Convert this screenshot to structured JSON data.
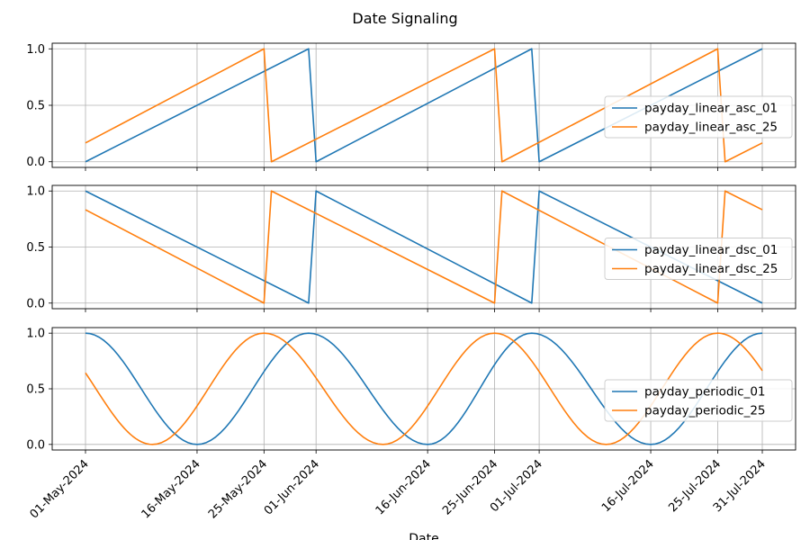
{
  "figure": {
    "title": "Date Signaling",
    "xlabel": "Date"
  },
  "colors": {
    "series_a": "#1f77b4",
    "series_b": "#ff7f0e",
    "grid": "#b0b0b0"
  },
  "chart_data": {
    "type": "line",
    "title": "Date Signaling",
    "xlabel": "Date",
    "x_range": [
      "2024-05-01",
      "2024-07-31"
    ],
    "xticks": [
      {
        "date": "2024-05-01",
        "label": "01-May-2024"
      },
      {
        "date": "2024-05-16",
        "label": "16-May-2024"
      },
      {
        "date": "2024-05-25",
        "label": "25-May-2024"
      },
      {
        "date": "2024-06-01",
        "label": "01-Jun-2024"
      },
      {
        "date": "2024-06-16",
        "label": "16-Jun-2024"
      },
      {
        "date": "2024-06-25",
        "label": "25-Jun-2024"
      },
      {
        "date": "2024-07-01",
        "label": "01-Jul-2024"
      },
      {
        "date": "2024-07-16",
        "label": "16-Jul-2024"
      },
      {
        "date": "2024-07-25",
        "label": "25-Jul-2024"
      },
      {
        "date": "2024-07-31",
        "label": "31-Jul-2024"
      }
    ],
    "grid": true,
    "panels": [
      {
        "ylim": [
          -0.05,
          1.05
        ],
        "yticks": [
          {
            "value": 0.0,
            "label": "0.0"
          },
          {
            "value": 0.5,
            "label": "0.5"
          },
          {
            "value": 1.0,
            "label": "1.0"
          }
        ],
        "legend_position": "right",
        "series": [
          {
            "name": "payday_linear_asc_01",
            "color": "#1f77b4",
            "points": [
              {
                "date": "2024-05-01",
                "y": 0.0
              },
              {
                "date": "2024-05-31",
                "y": 1.0
              },
              {
                "date": "2024-06-01",
                "y": 0.0
              },
              {
                "date": "2024-06-30",
                "y": 1.0
              },
              {
                "date": "2024-07-01",
                "y": 0.0
              },
              {
                "date": "2024-07-31",
                "y": 1.0
              }
            ]
          },
          {
            "name": "payday_linear_asc_25",
            "color": "#ff7f0e",
            "points": [
              {
                "date": "2024-05-01",
                "y": 0.167
              },
              {
                "date": "2024-05-25",
                "y": 1.0
              },
              {
                "date": "2024-05-26",
                "y": 0.0
              },
              {
                "date": "2024-06-25",
                "y": 1.0
              },
              {
                "date": "2024-06-26",
                "y": 0.0
              },
              {
                "date": "2024-07-25",
                "y": 1.0
              },
              {
                "date": "2024-07-26",
                "y": 0.0
              },
              {
                "date": "2024-07-31",
                "y": 0.167
              }
            ]
          }
        ]
      },
      {
        "ylim": [
          -0.05,
          1.05
        ],
        "yticks": [
          {
            "value": 0.0,
            "label": "0.0"
          },
          {
            "value": 0.5,
            "label": "0.5"
          },
          {
            "value": 1.0,
            "label": "1.0"
          }
        ],
        "legend_position": "right",
        "series": [
          {
            "name": "payday_linear_dsc_01",
            "color": "#1f77b4",
            "points": [
              {
                "date": "2024-05-01",
                "y": 1.0
              },
              {
                "date": "2024-05-31",
                "y": 0.0
              },
              {
                "date": "2024-06-01",
                "y": 1.0
              },
              {
                "date": "2024-06-30",
                "y": 0.0
              },
              {
                "date": "2024-07-01",
                "y": 1.0
              },
              {
                "date": "2024-07-31",
                "y": 0.0
              }
            ]
          },
          {
            "name": "payday_linear_dsc_25",
            "color": "#ff7f0e",
            "points": [
              {
                "date": "2024-05-01",
                "y": 0.833
              },
              {
                "date": "2024-05-25",
                "y": 0.0
              },
              {
                "date": "2024-05-26",
                "y": 1.0
              },
              {
                "date": "2024-06-25",
                "y": 0.0
              },
              {
                "date": "2024-06-26",
                "y": 1.0
              },
              {
                "date": "2024-07-25",
                "y": 0.0
              },
              {
                "date": "2024-07-26",
                "y": 1.0
              },
              {
                "date": "2024-07-31",
                "y": 0.833
              }
            ]
          }
        ]
      },
      {
        "ylim": [
          -0.05,
          1.05
        ],
        "yticks": [
          {
            "value": 0.0,
            "label": "0.0"
          },
          {
            "value": 0.5,
            "label": "0.5"
          },
          {
            "value": 1.0,
            "label": "1.0"
          }
        ],
        "legend_position": "right",
        "series": [
          {
            "name": "payday_periodic_01",
            "color": "#1f77b4",
            "periodic": {
              "peaks": [
                "2024-05-01",
                "2024-05-31",
                "2024-06-30",
                "2024-07-31"
              ],
              "troughs": [
                "2024-05-16",
                "2024-06-16",
                "2024-07-16"
              ]
            }
          },
          {
            "name": "payday_periodic_25",
            "color": "#ff7f0e",
            "start_value": 0.74,
            "end_value": 0.74,
            "periodic": {
              "peaks": [
                "2024-05-25",
                "2024-06-25",
                "2024-07-25"
              ],
              "troughs": [
                "2024-05-10",
                "2024-06-10",
                "2024-07-10"
              ]
            }
          }
        ]
      }
    ]
  }
}
